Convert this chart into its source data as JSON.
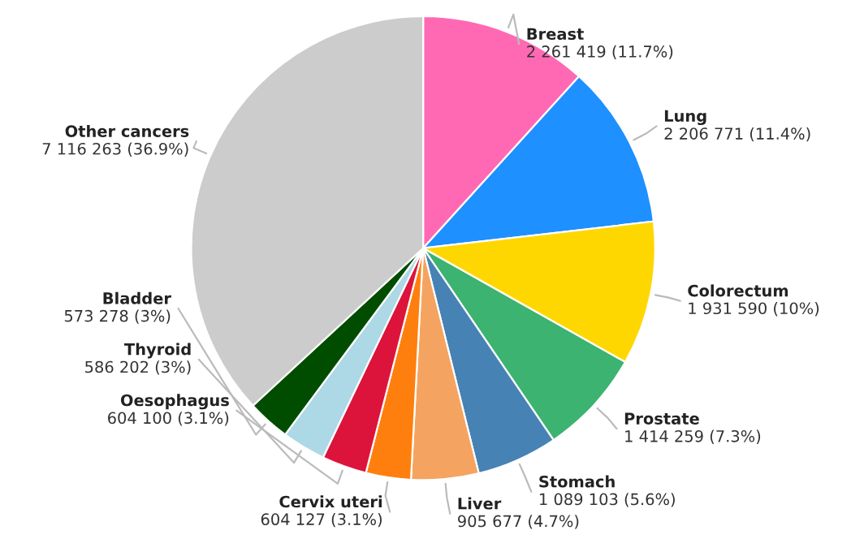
{
  "chart_data": {
    "type": "pie",
    "categories": [
      "Breast",
      "Lung",
      "Colorectum",
      "Prostate",
      "Stomach",
      "Liver",
      "Cervix uteri",
      "Oesophagus",
      "Thyroid",
      "Bladder",
      "Other cancers"
    ],
    "values": [
      2261419,
      2206771,
      1931590,
      1414259,
      1089103,
      905677,
      604127,
      604100,
      586202,
      573278,
      7116263
    ],
    "value_labels": [
      "2 261 419 (11.7%)",
      "2 206 771 (11.4%)",
      "1 931 590 (10%)",
      "1 414 259 (7.3%)",
      "1 089 103 (5.6%)",
      "905 677 (4.7%)",
      "604 127 (3.1%)",
      "604 100 (3.1%)",
      "586 202 (3%)",
      "573 278 (3%)",
      "7 116 263 (36.9%)"
    ],
    "colors": [
      "#ff69b4",
      "#1e90ff",
      "#ffd700",
      "#3cb371",
      "#4682b4",
      "#f4a460",
      "#ff7f0e",
      "#dc143c",
      "#add8e6",
      "#004d00",
      "#cccccc"
    ],
    "legend": false
  }
}
